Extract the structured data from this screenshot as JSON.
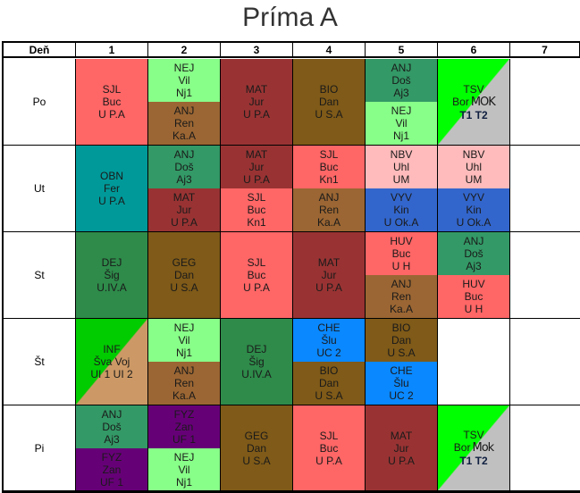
{
  "title": "Príma A",
  "header": {
    "day_label": "Deň",
    "periods": [
      "1",
      "2",
      "3",
      "4",
      "5",
      "6",
      "7"
    ]
  },
  "colors": {
    "SJL": "#FF6666",
    "NEJ": "#88FF88",
    "ANJR": "#9B6633",
    "ANJD": "#339966",
    "MAT": "#993333",
    "BRN": "#7F5A18",
    "OBN": "#009999",
    "NBV": "#FFBBBB",
    "VYV": "#3366CC",
    "DEJ": "#2E8B4A",
    "CHE": "#0A88FF",
    "FYZ": "#660077",
    "TSVa": "#00FF00",
    "TSVb": "#C0C0C0",
    "INFa": "#00CC00",
    "INFb": "#CC9966"
  },
  "days": [
    {
      "name": "Po",
      "cells": [
        {
          "full": {
            "c": "SJL",
            "l": [
              "SJL",
              "Buc",
              "U P.A"
            ]
          }
        },
        {
          "top": {
            "c": "NEJ",
            "l": [
              "NEJ",
              "Vil",
              "Nj1"
            ]
          },
          "bottom": {
            "c": "ANJR",
            "l": [
              "ANJ",
              "Ren",
              "Ka.A"
            ]
          }
        },
        {
          "full": {
            "c": "MAT",
            "l": [
              "MAT",
              "Jur",
              "U P.A"
            ]
          }
        },
        {
          "full": {
            "c": "BRN",
            "l": [
              "BIO",
              "Dan",
              "U S.A"
            ]
          }
        },
        {
          "top": {
            "c": "ANJD",
            "l": [
              "ANJ",
              "Doš",
              "Aj3"
            ]
          },
          "bottom": {
            "c": "NEJ",
            "l": [
              "NEJ",
              "Vil",
              "Nj1"
            ]
          }
        },
        {
          "diag": {
            "a": "TSVa",
            "b": "TSVb",
            "l": [
              "TSV",
              "Bor",
              "T1 T2"
            ],
            "extra": "MOK"
          }
        },
        {}
      ]
    },
    {
      "name": "Ut",
      "cells": [
        {
          "full": {
            "c": "OBN",
            "l": [
              "OBN",
              "Fer",
              "U P.A"
            ]
          }
        },
        {
          "top": {
            "c": "ANJD",
            "l": [
              "ANJ",
              "Doš",
              "Aj3"
            ]
          },
          "bottom": {
            "c": "MAT",
            "l": [
              "MAT",
              "Jur",
              "U P.A"
            ]
          }
        },
        {
          "top": {
            "c": "MAT",
            "l": [
              "MAT",
              "Jur",
              "U P.A"
            ]
          },
          "bottom": {
            "c": "SJL",
            "l": [
              "SJL",
              "Buc",
              "Kn1"
            ]
          }
        },
        {
          "top": {
            "c": "SJL",
            "l": [
              "SJL",
              "Buc",
              "Kn1"
            ]
          },
          "bottom": {
            "c": "ANJR",
            "l": [
              "ANJ",
              "Ren",
              "Ka.A"
            ]
          }
        },
        {
          "top": {
            "c": "NBV",
            "l": [
              "NBV",
              "Uhl",
              "UM"
            ]
          },
          "bottom": {
            "c": "VYV",
            "l": [
              "VYV",
              "Kin",
              "U Ok.A"
            ]
          }
        },
        {
          "top": {
            "c": "NBV",
            "l": [
              "NBV",
              "Uhl",
              "UM"
            ]
          },
          "bottom": {
            "c": "VYV",
            "l": [
              "VYV",
              "Kin",
              "U Ok.A"
            ]
          }
        },
        {}
      ]
    },
    {
      "name": "St",
      "cells": [
        {
          "full": {
            "c": "DEJ",
            "l": [
              "DEJ",
              "Šig",
              "U.IV.A"
            ]
          }
        },
        {
          "full": {
            "c": "BRN",
            "l": [
              "GEG",
              "Dan",
              "U S.A"
            ]
          }
        },
        {
          "full": {
            "c": "SJL",
            "l": [
              "SJL",
              "Buc",
              "U P.A"
            ]
          }
        },
        {
          "full": {
            "c": "MAT",
            "l": [
              "MAT",
              "Jur",
              "U P.A"
            ]
          }
        },
        {
          "top": {
            "c": "SJL",
            "l": [
              "HUV",
              "Buc",
              "U H"
            ]
          },
          "bottom": {
            "c": "ANJR",
            "l": [
              "ANJ",
              "Ren",
              "Ka.A"
            ]
          }
        },
        {
          "top": {
            "c": "ANJD",
            "l": [
              "ANJ",
              "Doš",
              "Aj3"
            ]
          },
          "bottom": {
            "c": "SJL",
            "l": [
              "HUV",
              "Buc",
              "U H"
            ]
          }
        },
        {}
      ]
    },
    {
      "name": "Št",
      "cells": [
        {
          "diag": {
            "a": "INFa",
            "b": "INFb",
            "l": [
              "INF",
              "Šva Voj",
              "UI 1 UI 2"
            ]
          }
        },
        {
          "top": {
            "c": "NEJ",
            "l": [
              "NEJ",
              "Vil",
              "Nj1"
            ]
          },
          "bottom": {
            "c": "ANJR",
            "l": [
              "ANJ",
              "Ren",
              "Ka.A"
            ]
          }
        },
        {
          "full": {
            "c": "DEJ",
            "l": [
              "DEJ",
              "Šig",
              "U.IV.A"
            ]
          }
        },
        {
          "top": {
            "c": "CHE",
            "l": [
              "CHE",
              "Šlu",
              "UC 2"
            ]
          },
          "bottom": {
            "c": "BRN",
            "l": [
              "BIO",
              "Dan",
              "U S.A"
            ]
          }
        },
        {
          "top": {
            "c": "BRN",
            "l": [
              "BIO",
              "Dan",
              "U S.A"
            ]
          },
          "bottom": {
            "c": "CHE",
            "l": [
              "CHE",
              "Šlu",
              "UC 2"
            ]
          }
        },
        {},
        {}
      ]
    },
    {
      "name": "Pi",
      "cells": [
        {
          "top": {
            "c": "ANJD",
            "l": [
              "ANJ",
              "Doš",
              "Aj3"
            ]
          },
          "bottom": {
            "c": "FYZ",
            "l": [
              "FYZ",
              "Zan",
              "UF 1"
            ]
          }
        },
        {
          "top": {
            "c": "FYZ",
            "l": [
              "FYZ",
              "Zan",
              "UF 1"
            ]
          },
          "bottom": {
            "c": "NEJ",
            "l": [
              "NEJ",
              "Vil",
              "Nj1"
            ]
          }
        },
        {
          "full": {
            "c": "BRN",
            "l": [
              "GEG",
              "Dan",
              "U S.A"
            ]
          }
        },
        {
          "full": {
            "c": "SJL",
            "l": [
              "SJL",
              "Buc",
              "U P.A"
            ]
          }
        },
        {
          "full": {
            "c": "MAT",
            "l": [
              "MAT",
              "Jur",
              "U P.A"
            ]
          }
        },
        {
          "diag": {
            "a": "TSVa",
            "b": "TSVb",
            "l": [
              "TSV",
              "Bor",
              "T1 T2"
            ],
            "extra": "Mok"
          }
        },
        {}
      ]
    }
  ]
}
